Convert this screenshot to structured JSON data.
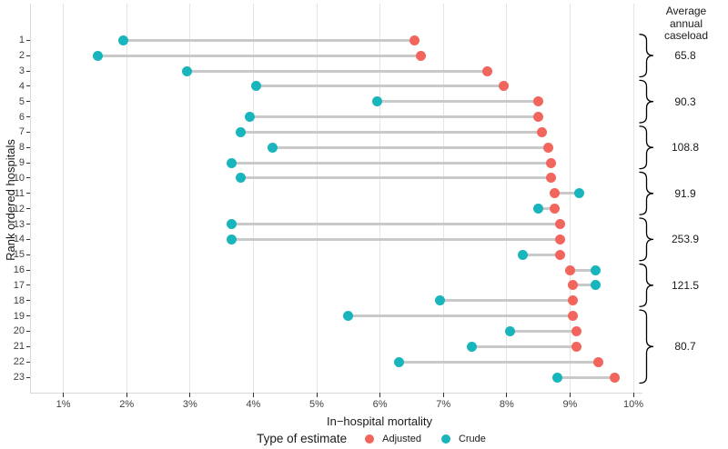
{
  "y_axis": {
    "label": "Rank ordered hospitals",
    "ticks": [
      "1",
      "2",
      "3",
      "4",
      "5",
      "6",
      "7",
      "8",
      "9",
      "10",
      "11",
      "12",
      "13",
      "14",
      "15",
      "16",
      "17",
      "18",
      "19",
      "20",
      "21",
      "22",
      "23"
    ]
  },
  "x_axis": {
    "label": "In−hospital mortality",
    "ticks": [
      "1%",
      "2%",
      "3%",
      "4%",
      "5%",
      "6%",
      "7%",
      "8%",
      "9%",
      "10%"
    ]
  },
  "legend": {
    "title": "Type of estimate",
    "items": [
      {
        "label": "Adjusted",
        "color": "#f2655c"
      },
      {
        "label": "Crude",
        "color": "#18b6bc"
      }
    ]
  },
  "right_column": {
    "header_lines": [
      "Average",
      "annual",
      "caseload"
    ]
  },
  "colors": {
    "adjusted": "#f2655c",
    "crude": "#18b6bc",
    "connector": "#c9c9c9",
    "gridline": "#e4e4e4"
  },
  "chart_data": {
    "type": "scatter",
    "subtype": "dumbbell",
    "title": "",
    "xlabel": "In−hospital mortality",
    "ylabel": "Rank ordered hospitals",
    "x_unit": "percent",
    "xlim": [
      0.5,
      10.6
    ],
    "x_ticks_percent": [
      1,
      2,
      3,
      4,
      5,
      6,
      7,
      8,
      9,
      10
    ],
    "grid": "vertical-only",
    "legend_position": "bottom",
    "ranks": [
      1,
      2,
      3,
      4,
      5,
      6,
      7,
      8,
      9,
      10,
      11,
      12,
      13,
      14,
      15,
      16,
      17,
      18,
      19,
      20,
      21,
      22,
      23
    ],
    "series": [
      {
        "name": "Adjusted",
        "color": "#f2655c",
        "values_percent": [
          6.55,
          6.65,
          7.7,
          7.95,
          8.5,
          8.5,
          8.55,
          8.65,
          8.7,
          8.7,
          8.75,
          8.75,
          8.85,
          8.85,
          8.85,
          9.0,
          9.05,
          9.05,
          9.05,
          9.1,
          9.1,
          9.45,
          9.7
        ]
      },
      {
        "name": "Crude",
        "color": "#18b6bc",
        "values_percent": [
          1.95,
          1.55,
          2.95,
          4.05,
          5.95,
          3.95,
          3.8,
          4.3,
          3.65,
          3.8,
          9.15,
          8.5,
          3.65,
          3.65,
          8.25,
          9.4,
          9.4,
          6.95,
          5.5,
          8.05,
          7.45,
          6.3,
          8.8
        ]
      }
    ],
    "caseload_header": "Average annual caseload",
    "caseload_groups": [
      {
        "first_rank": 1,
        "last_rank": 3,
        "value": "65.8"
      },
      {
        "first_rank": 4,
        "last_rank": 6,
        "value": "90.3"
      },
      {
        "first_rank": 7,
        "last_rank": 9,
        "value": "108.8"
      },
      {
        "first_rank": 10,
        "last_rank": 12,
        "value": "91.9"
      },
      {
        "first_rank": 13,
        "last_rank": 15,
        "value": "253.9"
      },
      {
        "first_rank": 16,
        "last_rank": 18,
        "value": "121.5"
      },
      {
        "first_rank": 19,
        "last_rank": 23,
        "value": "80.7"
      }
    ]
  }
}
